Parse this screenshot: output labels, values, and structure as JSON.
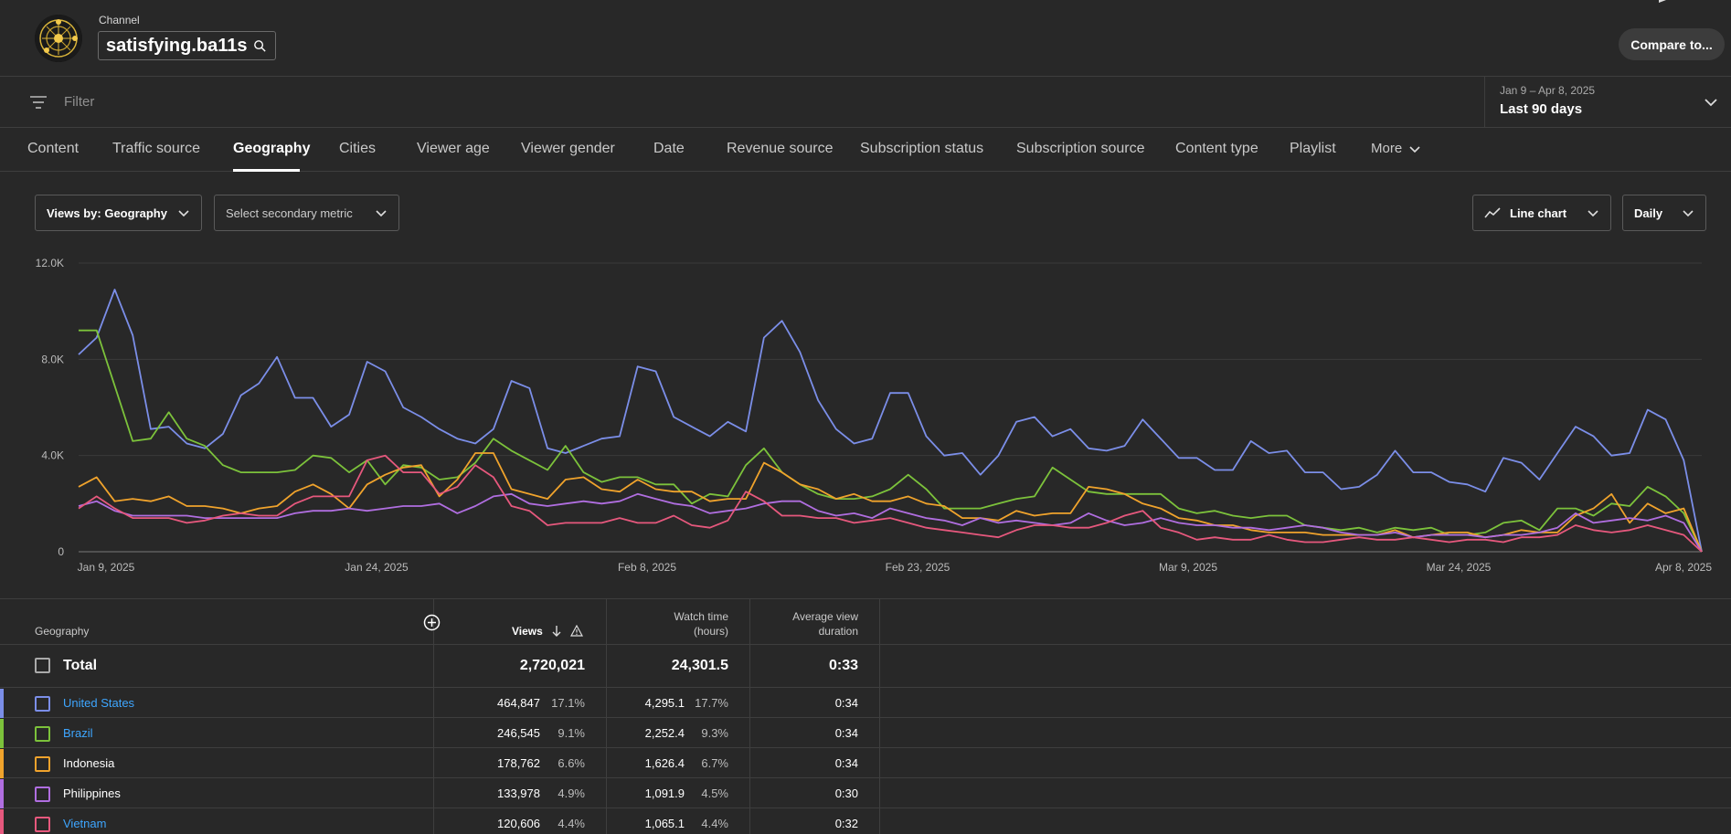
{
  "header": {
    "channel_caption": "Channel",
    "channel_name": "satisfying.ba11s",
    "compare_label": "Compare to..."
  },
  "filter": {
    "placeholder": "Filter"
  },
  "date_picker": {
    "range": "Jan 9 – Apr 8, 2025",
    "label": "Last 90 days"
  },
  "tabs": [
    {
      "label": "Content"
    },
    {
      "label": "Traffic source"
    },
    {
      "label": "Geography"
    },
    {
      "label": "Cities"
    },
    {
      "label": "Viewer age"
    },
    {
      "label": "Viewer gender"
    },
    {
      "label": "Date"
    },
    {
      "label": "Revenue source"
    },
    {
      "label": "Subscription status"
    },
    {
      "label": "Subscription source"
    },
    {
      "label": "Content type"
    },
    {
      "label": "Playlist"
    },
    {
      "label": "More"
    }
  ],
  "active_tab": "Geography",
  "controls": {
    "primary_metric": "Views by: Geography",
    "secondary_metric": "Select secondary metric",
    "chart_type": "Line chart",
    "granularity": "Daily"
  },
  "chart_data": {
    "type": "line",
    "y_ticks": [
      "12.0K",
      "8.0K",
      "4.0K",
      "0"
    ],
    "ylim": [
      0,
      12000
    ],
    "x_ticks": [
      "Jan 9, 2025",
      "Jan 24, 2025",
      "Feb 8, 2025",
      "Feb 23, 2025",
      "Mar 9, 2025",
      "Mar 24, 2025",
      "Apr 8, 2025"
    ],
    "x_start": "2025-01-09",
    "x_end": "2025-04-08",
    "grid": true,
    "series": [
      {
        "name": "United States",
        "color": "#7b8ee8",
        "values": [
          8200,
          8900,
          10900,
          9000,
          5100,
          5200,
          4500,
          4300,
          4900,
          6500,
          7000,
          8100,
          6400,
          6400,
          5200,
          5700,
          7900,
          7500,
          6000,
          5600,
          5100,
          4700,
          4500,
          5100,
          7100,
          6800,
          4300,
          4100,
          4400,
          4700,
          4800,
          7700,
          7500,
          5600,
          5200,
          4800,
          5400,
          5000,
          8900,
          9600,
          8300,
          6300,
          5100,
          4500,
          4700,
          6600,
          6600,
          4800,
          4000,
          4100,
          3200,
          4000,
          5400,
          5600,
          4800,
          5100,
          4300,
          4200,
          4400,
          5500,
          4700,
          3900,
          3900,
          3400,
          3400,
          4600,
          4100,
          4200,
          3300,
          3300,
          2600,
          2700,
          3200,
          4200,
          3300,
          3300,
          2900,
          2800,
          2500,
          3900,
          3700,
          3000,
          4100,
          5200,
          4800,
          4000,
          4100,
          5900,
          5500,
          3800,
          0
        ]
      },
      {
        "name": "Brazil",
        "color": "#7cc23b",
        "values": [
          9200,
          9200,
          6900,
          4600,
          4700,
          5800,
          4700,
          4400,
          3600,
          3300,
          3300,
          3300,
          3400,
          4000,
          3900,
          3300,
          3800,
          2800,
          3600,
          3500,
          3000,
          3100,
          3700,
          4700,
          4200,
          3800,
          3400,
          4400,
          3300,
          2900,
          3100,
          3100,
          2800,
          2800,
          2000,
          2400,
          2300,
          3600,
          4300,
          3300,
          2800,
          2400,
          2200,
          2200,
          2300,
          2600,
          3200,
          2600,
          1800,
          1800,
          1800,
          2000,
          2200,
          2300,
          3500,
          3000,
          2500,
          2400,
          2400,
          2400,
          2400,
          1800,
          1600,
          1700,
          1500,
          1400,
          1500,
          1500,
          1100,
          1000,
          900,
          1000,
          800,
          1000,
          900,
          1000,
          700,
          700,
          800,
          1200,
          1300,
          900,
          1800,
          1800,
          1500,
          2000,
          1900,
          2700,
          2300,
          1600,
          0
        ]
      },
      {
        "name": "Indonesia",
        "color": "#f0a32c",
        "values": [
          2700,
          3100,
          2100,
          2200,
          2100,
          2300,
          1900,
          1900,
          1800,
          1600,
          1800,
          1900,
          2500,
          2800,
          2400,
          1800,
          2800,
          3200,
          3500,
          3600,
          2300,
          3000,
          4100,
          4100,
          2600,
          2400,
          2200,
          3000,
          3100,
          2600,
          2500,
          3000,
          2600,
          2500,
          2500,
          2100,
          2200,
          2200,
          3700,
          3300,
          2800,
          2600,
          2200,
          2400,
          2100,
          2100,
          2300,
          2000,
          1900,
          1400,
          1400,
          1300,
          1700,
          1500,
          1600,
          1600,
          2700,
          2600,
          2400,
          2000,
          1800,
          1400,
          1300,
          1100,
          1100,
          900,
          800,
          800,
          800,
          700,
          700,
          700,
          700,
          900,
          600,
          700,
          800,
          800,
          600,
          700,
          900,
          800,
          800,
          1500,
          1800,
          2400,
          1200,
          2000,
          1600,
          1800,
          0
        ]
      },
      {
        "name": "Philippines",
        "color": "#b06ee0",
        "values": [
          1900,
          2100,
          1700,
          1500,
          1500,
          1500,
          1500,
          1400,
          1400,
          1400,
          1400,
          1400,
          1600,
          1700,
          1700,
          1800,
          1700,
          1800,
          1900,
          1900,
          2000,
          1600,
          1900,
          2300,
          2400,
          2000,
          1900,
          2000,
          2100,
          2000,
          2100,
          2400,
          2200,
          2000,
          1900,
          1600,
          1700,
          1800,
          2000,
          2100,
          2100,
          1700,
          1500,
          1600,
          1400,
          1800,
          1600,
          1400,
          1300,
          1100,
          1400,
          1200,
          1300,
          1200,
          1100,
          1200,
          1600,
          1300,
          1100,
          1200,
          1400,
          1200,
          1100,
          1100,
          1000,
          1000,
          900,
          1000,
          1100,
          1000,
          800,
          700,
          700,
          800,
          600,
          700,
          700,
          700,
          600,
          700,
          700,
          800,
          1000,
          1600,
          1200,
          1300,
          1400,
          1300,
          1500,
          1200,
          0
        ]
      },
      {
        "name": "Vietnam",
        "color": "#e6587d",
        "values": [
          1800,
          2300,
          1800,
          1400,
          1400,
          1400,
          1200,
          1300,
          1500,
          1600,
          1500,
          1500,
          2000,
          2300,
          2300,
          2300,
          3800,
          4000,
          3300,
          3300,
          2400,
          2700,
          3600,
          3100,
          1900,
          1700,
          1100,
          1200,
          1200,
          1200,
          1400,
          1200,
          1200,
          1500,
          1100,
          1000,
          1300,
          2500,
          2100,
          1500,
          1500,
          1400,
          1400,
          1200,
          1300,
          1400,
          1200,
          1000,
          900,
          800,
          700,
          600,
          900,
          1100,
          1100,
          1000,
          1000,
          1200,
          1500,
          1700,
          1000,
          800,
          500,
          600,
          500,
          500,
          700,
          500,
          400,
          400,
          500,
          600,
          500,
          500,
          600,
          500,
          400,
          500,
          500,
          400,
          600,
          600,
          700,
          1100,
          900,
          800,
          900,
          1100,
          900,
          700,
          0
        ]
      }
    ]
  },
  "table": {
    "columns": {
      "geography": "Geography",
      "views": "Views",
      "watch_time_1": "Watch time",
      "watch_time_2": "(hours)",
      "avd_1": "Average view",
      "avd_2": "duration"
    },
    "total": {
      "label": "Total",
      "views": "2,720,021",
      "watch_time": "24,301.5",
      "avd": "0:33"
    },
    "rows": [
      {
        "name": "United States",
        "color": "#7b8ee8",
        "views": "464,847",
        "views_pct": "17.1%",
        "watch": "4,295.1",
        "watch_pct": "17.7%",
        "avd": "0:34"
      },
      {
        "name": "Brazil",
        "color": "#7cc23b",
        "views": "246,545",
        "views_pct": "9.1%",
        "watch": "2,252.4",
        "watch_pct": "9.3%",
        "avd": "0:34"
      },
      {
        "name": "Indonesia",
        "color": "#f0a32c",
        "views": "178,762",
        "views_pct": "6.6%",
        "watch": "1,626.4",
        "watch_pct": "6.7%",
        "avd": "0:34"
      },
      {
        "name": "Philippines",
        "color": "#b06ee0",
        "views": "133,978",
        "views_pct": "4.9%",
        "watch": "1,091.9",
        "watch_pct": "4.5%",
        "avd": "0:30"
      },
      {
        "name": "Vietnam",
        "color": "#e6587d",
        "views": "120,606",
        "views_pct": "4.4%",
        "watch": "1,065.1",
        "watch_pct": "4.4%",
        "avd": "0:32"
      }
    ]
  }
}
